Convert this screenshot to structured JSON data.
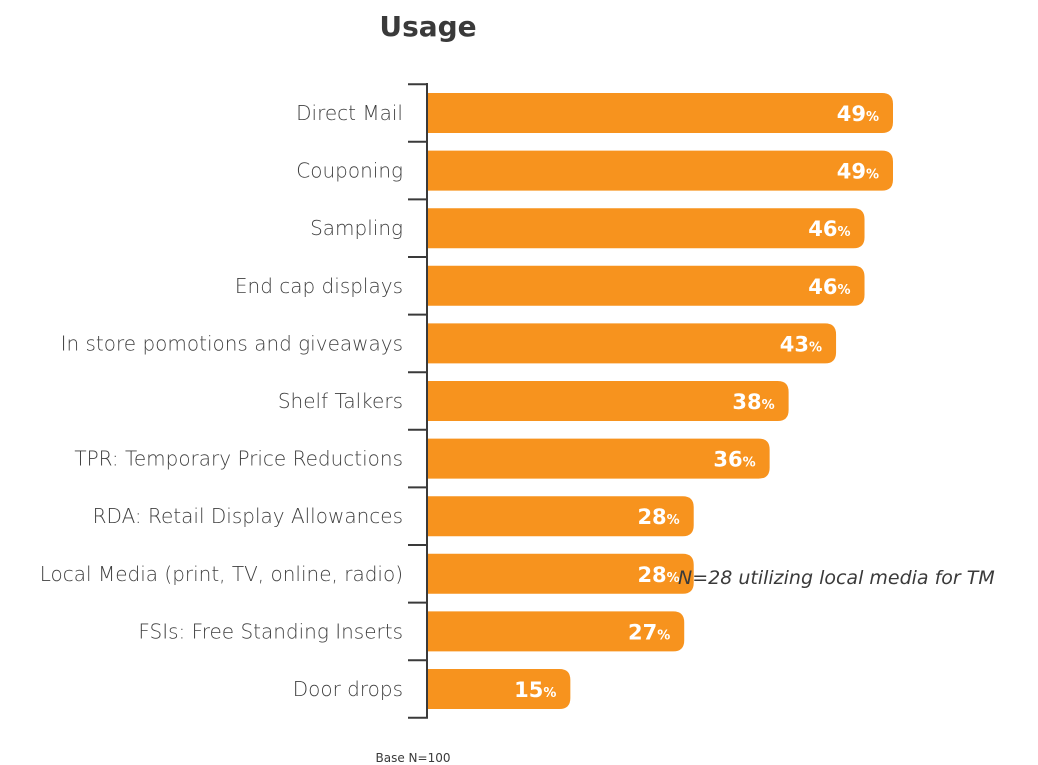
{
  "chart_data": {
    "type": "bar",
    "orientation": "horizontal",
    "title": "Usage",
    "categories": [
      "Direct Mail",
      "Couponing",
      "Sampling",
      "End cap displays",
      "In store pomotions and giveaways",
      "Shelf Talkers",
      "TPR: Temporary Price Reductions",
      "RDA: Retail Display Allowances",
      "Local Media (print, TV, online, radio)",
      "FSIs: Free Standing Inserts",
      "Door drops"
    ],
    "values": [
      49,
      49,
      46,
      46,
      43,
      38,
      36,
      28,
      28,
      27,
      15
    ],
    "value_suffix": "%",
    "annotation": "N=28 utilizing local media for TM",
    "annotation_category": "Local Media (print, TV, online, radio)",
    "footnote": "Base N=100",
    "bar_color": "#F7931E",
    "label_color": "#ffffff",
    "axis_color": "#3a3a3a",
    "grid": false,
    "legend": "none"
  }
}
